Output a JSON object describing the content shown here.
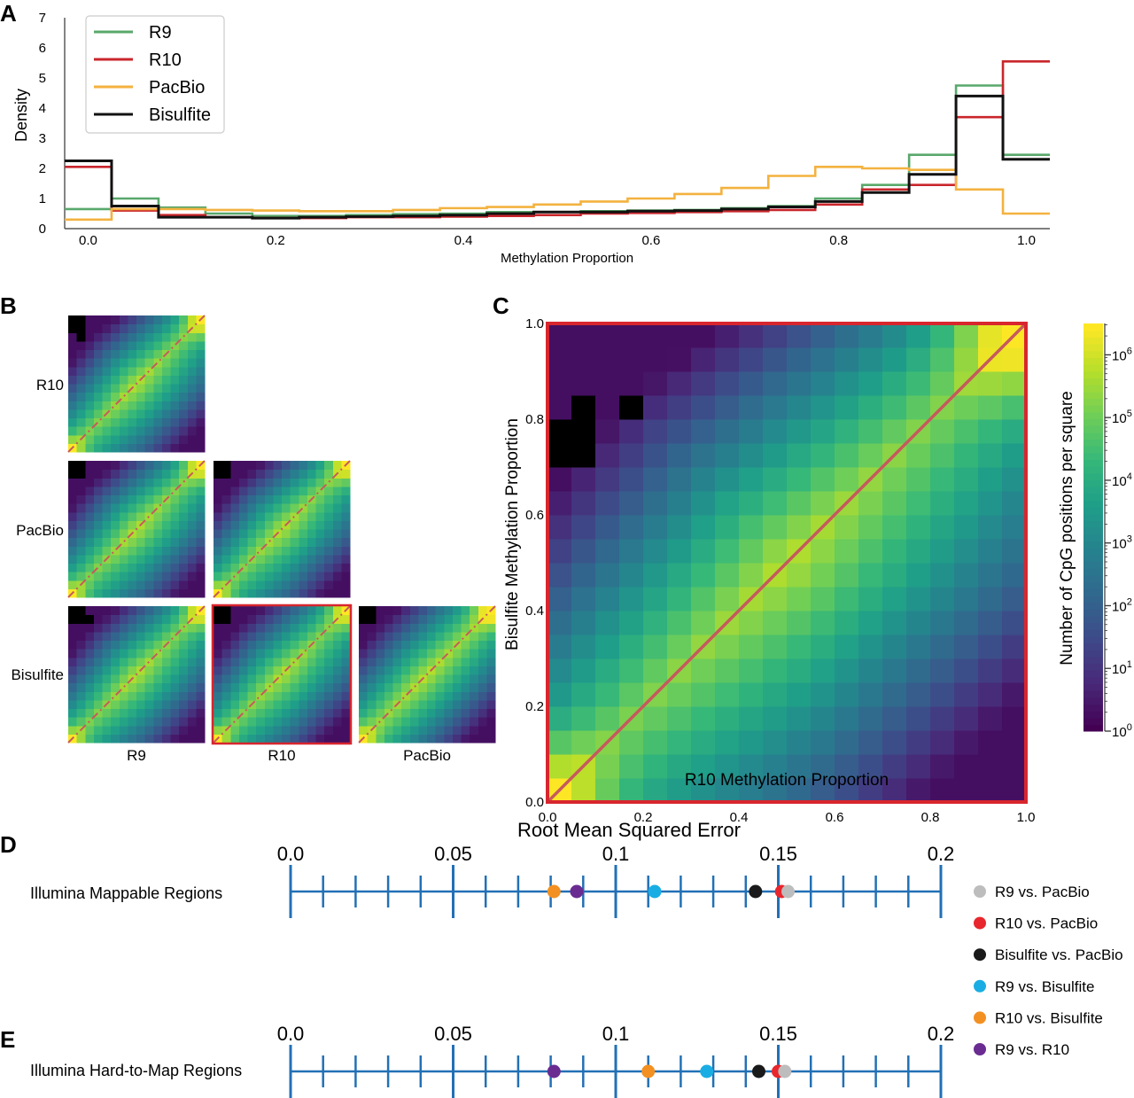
{
  "panels": {
    "A": "A",
    "B": "B",
    "C": "C",
    "D": "D",
    "E": "E"
  },
  "colors": {
    "R9": "#59a86b",
    "R10": "#c9262c",
    "PacBio": "#f3b23f",
    "Bisulfite": "#111111",
    "axis_blue": "#2270b5",
    "highlight": "#d8262e",
    "diagonal": "#c65a5d",
    "dot_R9_PacBio": "#bdbdbd",
    "dot_R10_PacBio": "#e8262d",
    "dot_Bis_PacBio": "#1a1a1a",
    "dot_R9_Bis": "#1aade4",
    "dot_R10_Bis": "#f39022",
    "dot_R9_R10": "#6a2c91"
  },
  "chart_data": [
    {
      "id": "A",
      "type": "line",
      "style": "step",
      "xlabel": "Methylation Proportion",
      "ylabel": "Density",
      "xlim": [
        -0.025,
        1.025
      ],
      "ylim": [
        0,
        7
      ],
      "xticks": [
        "0.0",
        "0.2",
        "0.4",
        "0.6",
        "0.8",
        "1.0"
      ],
      "xtick_values": [
        0,
        0.2,
        0.4,
        0.6,
        0.8,
        1.0
      ],
      "yticks": [
        "0",
        "1",
        "2",
        "3",
        "4",
        "5",
        "6",
        "7"
      ],
      "yticks_values": [
        0,
        1,
        2,
        3,
        4,
        5,
        6,
        7
      ],
      "bin_edges": [
        -0.025,
        0.025,
        0.075,
        0.125,
        0.175,
        0.225,
        0.275,
        0.325,
        0.375,
        0.425,
        0.475,
        0.525,
        0.575,
        0.625,
        0.675,
        0.725,
        0.775,
        0.825,
        0.875,
        0.925,
        0.975,
        1.025
      ],
      "legend_position": "top-left",
      "series": [
        {
          "name": "R9",
          "color": "#59a86b",
          "values": [
            0.65,
            1.0,
            0.7,
            0.5,
            0.42,
            0.42,
            0.45,
            0.48,
            0.5,
            0.55,
            0.55,
            0.58,
            0.6,
            0.62,
            0.68,
            0.75,
            1.0,
            1.45,
            2.45,
            4.75,
            2.45
          ]
        },
        {
          "name": "R10",
          "color": "#c9262c",
          "values": [
            2.05,
            0.6,
            0.45,
            0.38,
            0.35,
            0.35,
            0.38,
            0.38,
            0.4,
            0.42,
            0.45,
            0.5,
            0.52,
            0.55,
            0.58,
            0.62,
            0.8,
            1.3,
            1.45,
            3.7,
            5.55
          ]
        },
        {
          "name": "PacBio",
          "color": "#f3b23f",
          "values": [
            0.3,
            0.65,
            0.65,
            0.62,
            0.6,
            0.58,
            0.58,
            0.62,
            0.68,
            0.72,
            0.8,
            0.9,
            1.0,
            1.15,
            1.35,
            1.75,
            2.05,
            2.0,
            1.95,
            1.3,
            0.5
          ]
        },
        {
          "name": "Bisulfite",
          "color": "#111111",
          "values": [
            2.25,
            0.75,
            0.38,
            0.38,
            0.35,
            0.38,
            0.4,
            0.42,
            0.45,
            0.5,
            0.55,
            0.55,
            0.58,
            0.6,
            0.65,
            0.72,
            0.9,
            1.2,
            1.8,
            4.4,
            2.3
          ]
        }
      ]
    },
    {
      "id": "B",
      "type": "heatmap",
      "layout": "lower-triangular pair matrix",
      "row_labels": [
        "R10",
        "PacBio",
        "Bisulfite"
      ],
      "col_labels": [
        "R9",
        "R10",
        "PacBio"
      ],
      "highlighted_pair": [
        "Bisulfite",
        "R10"
      ]
    },
    {
      "id": "C",
      "type": "heatmap",
      "xlabel": "R10 Methylation Proportion",
      "ylabel": "Bisulfite Methylation Proportion",
      "xlim": [
        0,
        1
      ],
      "ylim": [
        0,
        1
      ],
      "xticks": [
        "0.0",
        "0.2",
        "0.4",
        "0.6",
        "0.8",
        "1.0"
      ],
      "yticks": [
        "0.0",
        "0.2",
        "0.4",
        "0.6",
        "0.8",
        "1.0"
      ],
      "grid": "20x20",
      "colorscale": "viridis",
      "scale": "log",
      "colorbar_label": "Number of CpG positions per square",
      "colorbar_ticks": [
        "10",
        "10",
        "10",
        "10",
        "10",
        "10",
        "10"
      ],
      "colorbar_tick_exponents": [
        "0",
        "1",
        "2",
        "3",
        "4",
        "5",
        "6"
      ],
      "colorbar_range_log10": [
        0,
        6.5
      ]
    },
    {
      "id": "D",
      "type": "scatter",
      "title": "Root Mean Squared Error",
      "row_label": "Illumina Mappable Regions",
      "xlim": [
        0,
        0.2
      ],
      "xticks": [
        "0.0",
        "0.05",
        "0.1",
        "0.15",
        "0.2"
      ],
      "xtick_values": [
        0,
        0.05,
        0.1,
        0.15,
        0.2
      ],
      "points": [
        {
          "name": "R10 vs. Bisulfite",
          "value": 0.081,
          "color": "#f39022"
        },
        {
          "name": "R9 vs. R10",
          "value": 0.088,
          "color": "#6a2c91"
        },
        {
          "name": "R9 vs. Bisulfite",
          "value": 0.112,
          "color": "#1aade4"
        },
        {
          "name": "Bisulfite vs. PacBio",
          "value": 0.143,
          "color": "#1a1a1a"
        },
        {
          "name": "R10 vs. PacBio",
          "value": 0.151,
          "color": "#e8262d"
        },
        {
          "name": "R9 vs. PacBio",
          "value": 0.153,
          "color": "#bdbdbd"
        }
      ]
    },
    {
      "id": "E",
      "type": "scatter",
      "row_label": "Illumina Hard-to-Map Regions",
      "xlim": [
        0,
        0.2
      ],
      "xticks": [
        "0.0",
        "0.05",
        "0.1",
        "0.15",
        "0.2"
      ],
      "xtick_values": [
        0,
        0.05,
        0.1,
        0.15,
        0.2
      ],
      "points": [
        {
          "name": "R9 vs. R10",
          "value": 0.081,
          "color": "#6a2c91"
        },
        {
          "name": "R10 vs. Bisulfite",
          "value": 0.11,
          "color": "#f39022"
        },
        {
          "name": "R9 vs. Bisulfite",
          "value": 0.128,
          "color": "#1aade4"
        },
        {
          "name": "Bisulfite vs. PacBio",
          "value": 0.144,
          "color": "#1a1a1a"
        },
        {
          "name": "R10 vs. PacBio",
          "value": 0.15,
          "color": "#e8262d"
        },
        {
          "name": "R9 vs. PacBio",
          "value": 0.152,
          "color": "#bdbdbd"
        }
      ]
    }
  ],
  "legend_DE": [
    {
      "label": "R9 vs. PacBio",
      "color": "#bdbdbd"
    },
    {
      "label": "R10 vs. PacBio",
      "color": "#e8262d"
    },
    {
      "label": "Bisulfite vs. PacBio",
      "color": "#1a1a1a"
    },
    {
      "label": "R9 vs. Bisulfite",
      "color": "#1aade4"
    },
    {
      "label": "R10 vs. Bisulfite",
      "color": "#f39022"
    },
    {
      "label": "R9 vs. R10",
      "color": "#6a2c91"
    }
  ]
}
